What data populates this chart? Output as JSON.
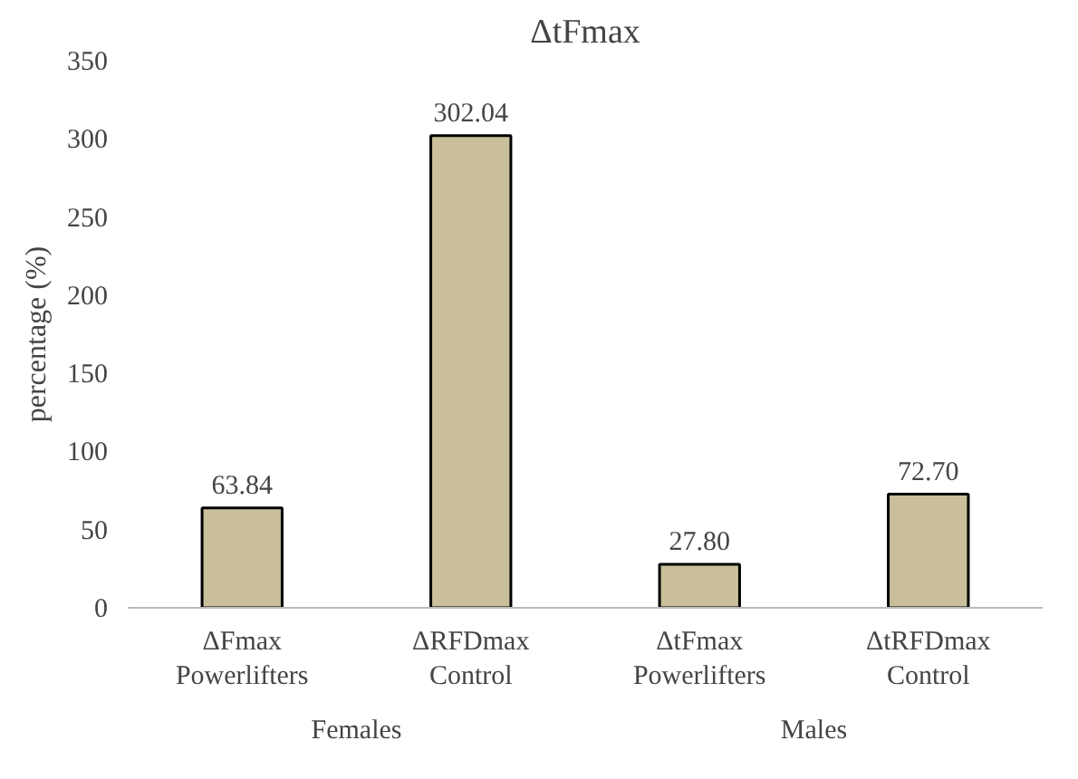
{
  "chart_data": {
    "type": "bar",
    "title": "ΔtFmax",
    "ylabel": "percentage (%)",
    "categories": [
      "ΔFmax\nPowerlifters",
      "ΔRFDmax\nControl",
      "ΔtFmax\nPowerlifters",
      "ΔtRFDmax\nControl"
    ],
    "values": [
      63.84,
      302.04,
      27.8,
      72.7
    ],
    "value_labels": [
      "63.84",
      "302.04",
      "27.80",
      "72.70"
    ],
    "color": "#c9bf9a",
    "ylim": [
      0,
      350
    ],
    "yticks": [
      0,
      50,
      100,
      150,
      200,
      250,
      300,
      350
    ],
    "grid": false,
    "annotations": [
      "Females",
      "Males"
    ]
  }
}
